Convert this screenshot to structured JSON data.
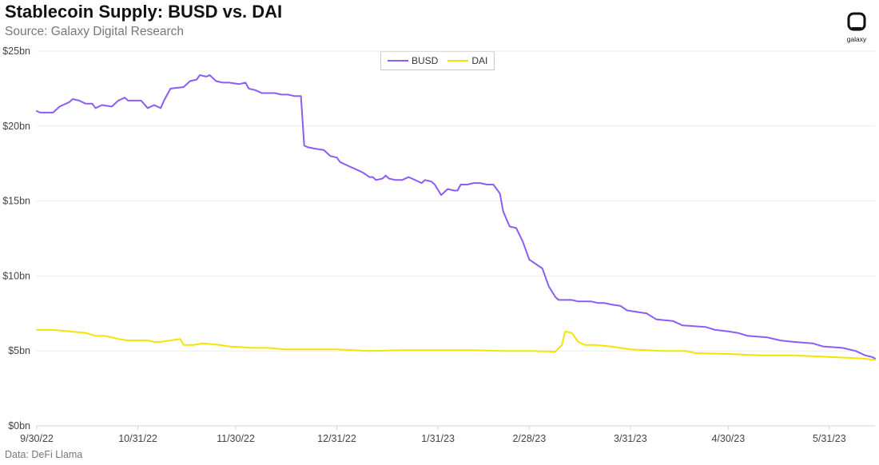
{
  "header": {
    "title": "Stablecoin Supply: BUSD vs. DAI",
    "subtitle": "Source: Galaxy Digital Research"
  },
  "footer": {
    "note": "Data: DeFi Llama"
  },
  "logo": {
    "word": "galaxy",
    "icon": "galaxy-logo-icon"
  },
  "colors": {
    "busd": "#8B5CF6",
    "dai": "#F5E400",
    "grid": "#ececec",
    "axis": "#d6d6d6"
  },
  "chart_data": {
    "type": "line",
    "title": "Stablecoin Supply: BUSD vs. DAI",
    "subtitle": "Source: Galaxy Digital Research",
    "xlabel": "",
    "ylabel": "",
    "ylim": [
      0,
      25
    ],
    "y_ticks": [
      0,
      5,
      10,
      15,
      20,
      25
    ],
    "y_tick_labels": [
      "$0bn",
      "$5bn",
      "$10bn",
      "$15bn",
      "$20bn",
      "$25bn"
    ],
    "x_ticks": [
      "2022-09-30",
      "2022-10-31",
      "2022-11-30",
      "2022-12-31",
      "2023-01-31",
      "2023-02-28",
      "2023-03-31",
      "2023-04-30",
      "2023-05-31"
    ],
    "x_tick_labels": [
      "9/30/22",
      "10/31/22",
      "11/30/22",
      "12/31/22",
      "1/31/23",
      "2/28/23",
      "3/31/23",
      "4/30/23",
      "5/31/23"
    ],
    "xlim": [
      "2022-09-30",
      "2023-06-14"
    ],
    "grid": "horizontal",
    "legend_position": "top-center",
    "series": [
      {
        "name": "BUSD",
        "color": "#8B5CF6",
        "points": [
          [
            "2022-09-30",
            21.0
          ],
          [
            "2022-10-01",
            20.9
          ],
          [
            "2022-10-05",
            20.9
          ],
          [
            "2022-10-07",
            21.3
          ],
          [
            "2022-10-10",
            21.6
          ],
          [
            "2022-10-11",
            21.8
          ],
          [
            "2022-10-13",
            21.7
          ],
          [
            "2022-10-15",
            21.5
          ],
          [
            "2022-10-17",
            21.5
          ],
          [
            "2022-10-18",
            21.2
          ],
          [
            "2022-10-20",
            21.4
          ],
          [
            "2022-10-23",
            21.3
          ],
          [
            "2022-10-25",
            21.7
          ],
          [
            "2022-10-27",
            21.9
          ],
          [
            "2022-10-28",
            21.7
          ],
          [
            "2022-11-01",
            21.7
          ],
          [
            "2022-11-03",
            21.2
          ],
          [
            "2022-11-05",
            21.4
          ],
          [
            "2022-11-07",
            21.2
          ],
          [
            "2022-11-08",
            21.7
          ],
          [
            "2022-11-10",
            22.5
          ],
          [
            "2022-11-14",
            22.6
          ],
          [
            "2022-11-16",
            23.0
          ],
          [
            "2022-11-18",
            23.1
          ],
          [
            "2022-11-19",
            23.4
          ],
          [
            "2022-11-21",
            23.3
          ],
          [
            "2022-11-22",
            23.4
          ],
          [
            "2022-11-24",
            23.0
          ],
          [
            "2022-11-26",
            22.9
          ],
          [
            "2022-11-28",
            22.9
          ],
          [
            "2022-12-01",
            22.8
          ],
          [
            "2022-12-03",
            22.9
          ],
          [
            "2022-12-04",
            22.5
          ],
          [
            "2022-12-06",
            22.4
          ],
          [
            "2022-12-08",
            22.2
          ],
          [
            "2022-12-12",
            22.2
          ],
          [
            "2022-12-14",
            22.1
          ],
          [
            "2022-12-16",
            22.1
          ],
          [
            "2022-12-18",
            22.0
          ],
          [
            "2022-12-20",
            22.0
          ],
          [
            "2022-12-21",
            18.7
          ],
          [
            "2022-12-22",
            18.6
          ],
          [
            "2022-12-24",
            18.5
          ],
          [
            "2022-12-27",
            18.4
          ],
          [
            "2022-12-29",
            18.0
          ],
          [
            "2022-12-31",
            17.9
          ],
          [
            "2023-01-01",
            17.6
          ],
          [
            "2023-01-04",
            17.3
          ],
          [
            "2023-01-06",
            17.1
          ],
          [
            "2023-01-08",
            16.9
          ],
          [
            "2023-01-10",
            16.6
          ],
          [
            "2023-01-11",
            16.6
          ],
          [
            "2023-01-12",
            16.4
          ],
          [
            "2023-01-14",
            16.5
          ],
          [
            "2023-01-15",
            16.7
          ],
          [
            "2023-01-16",
            16.5
          ],
          [
            "2023-01-18",
            16.4
          ],
          [
            "2023-01-20",
            16.4
          ],
          [
            "2023-01-22",
            16.6
          ],
          [
            "2023-01-24",
            16.4
          ],
          [
            "2023-01-26",
            16.2
          ],
          [
            "2023-01-27",
            16.4
          ],
          [
            "2023-01-29",
            16.3
          ],
          [
            "2023-01-30",
            16.1
          ],
          [
            "2023-02-01",
            15.4
          ],
          [
            "2023-02-03",
            15.8
          ],
          [
            "2023-02-05",
            15.7
          ],
          [
            "2023-02-06",
            15.7
          ],
          [
            "2023-02-07",
            16.1
          ],
          [
            "2023-02-09",
            16.1
          ],
          [
            "2023-02-11",
            16.2
          ],
          [
            "2023-02-13",
            16.2
          ],
          [
            "2023-02-15",
            16.1
          ],
          [
            "2023-02-17",
            16.1
          ],
          [
            "2023-02-19",
            15.5
          ],
          [
            "2023-02-20",
            14.3
          ],
          [
            "2023-02-22",
            13.3
          ],
          [
            "2023-02-24",
            13.2
          ],
          [
            "2023-02-26",
            12.3
          ],
          [
            "2023-02-28",
            11.1
          ],
          [
            "2023-03-02",
            10.8
          ],
          [
            "2023-03-04",
            10.5
          ],
          [
            "2023-03-06",
            9.3
          ],
          [
            "2023-03-08",
            8.6
          ],
          [
            "2023-03-09",
            8.4
          ],
          [
            "2023-03-13",
            8.4
          ],
          [
            "2023-03-15",
            8.3
          ],
          [
            "2023-03-17",
            8.3
          ],
          [
            "2023-03-19",
            8.3
          ],
          [
            "2023-03-21",
            8.2
          ],
          [
            "2023-03-23",
            8.2
          ],
          [
            "2023-03-25",
            8.1
          ],
          [
            "2023-03-28",
            8.0
          ],
          [
            "2023-03-30",
            7.7
          ],
          [
            "2023-04-02",
            7.6
          ],
          [
            "2023-04-05",
            7.5
          ],
          [
            "2023-04-08",
            7.1
          ],
          [
            "2023-04-13",
            7.0
          ],
          [
            "2023-04-16",
            6.7
          ],
          [
            "2023-04-23",
            6.6
          ],
          [
            "2023-04-26",
            6.4
          ],
          [
            "2023-04-30",
            6.3
          ],
          [
            "2023-05-03",
            6.2
          ],
          [
            "2023-05-06",
            6.0
          ],
          [
            "2023-05-12",
            5.9
          ],
          [
            "2023-05-16",
            5.7
          ],
          [
            "2023-05-20",
            5.6
          ],
          [
            "2023-05-26",
            5.5
          ],
          [
            "2023-05-29",
            5.3
          ],
          [
            "2023-06-04",
            5.2
          ],
          [
            "2023-06-08",
            5.0
          ],
          [
            "2023-06-11",
            4.7
          ],
          [
            "2023-06-13",
            4.6
          ],
          [
            "2023-06-14",
            4.5
          ]
        ]
      },
      {
        "name": "DAI",
        "color": "#F5E400",
        "points": [
          [
            "2022-09-30",
            6.4
          ],
          [
            "2022-10-05",
            6.4
          ],
          [
            "2022-10-10",
            6.3
          ],
          [
            "2022-10-15",
            6.2
          ],
          [
            "2022-10-18",
            6.0
          ],
          [
            "2022-10-21",
            6.0
          ],
          [
            "2022-10-25",
            5.8
          ],
          [
            "2022-10-28",
            5.7
          ],
          [
            "2022-11-03",
            5.7
          ],
          [
            "2022-11-05",
            5.6
          ],
          [
            "2022-11-07",
            5.6
          ],
          [
            "2022-11-10",
            5.7
          ],
          [
            "2022-11-13",
            5.8
          ],
          [
            "2022-11-14",
            5.4
          ],
          [
            "2022-11-17",
            5.4
          ],
          [
            "2022-11-20",
            5.5
          ],
          [
            "2022-11-25",
            5.4
          ],
          [
            "2022-11-28",
            5.3
          ],
          [
            "2022-12-05",
            5.2
          ],
          [
            "2022-12-10",
            5.2
          ],
          [
            "2022-12-15",
            5.1
          ],
          [
            "2022-12-20",
            5.1
          ],
          [
            "2022-12-31",
            5.1
          ],
          [
            "2023-01-10",
            5.0
          ],
          [
            "2023-01-20",
            5.05
          ],
          [
            "2023-01-31",
            5.05
          ],
          [
            "2023-02-10",
            5.05
          ],
          [
            "2023-02-20",
            5.0
          ],
          [
            "2023-03-01",
            5.0
          ],
          [
            "2023-03-08",
            4.95
          ],
          [
            "2023-03-10",
            5.4
          ],
          [
            "2023-03-11",
            6.3
          ],
          [
            "2023-03-13",
            6.2
          ],
          [
            "2023-03-15",
            5.6
          ],
          [
            "2023-03-17",
            5.4
          ],
          [
            "2023-03-20",
            5.4
          ],
          [
            "2023-03-25",
            5.3
          ],
          [
            "2023-03-31",
            5.1
          ],
          [
            "2023-04-10",
            5.0
          ],
          [
            "2023-04-17",
            5.0
          ],
          [
            "2023-04-20",
            4.85
          ],
          [
            "2023-04-30",
            4.8
          ],
          [
            "2023-05-10",
            4.7
          ],
          [
            "2023-05-20",
            4.7
          ],
          [
            "2023-05-31",
            4.6
          ],
          [
            "2023-06-10",
            4.5
          ],
          [
            "2023-06-14",
            4.4
          ]
        ]
      }
    ]
  }
}
